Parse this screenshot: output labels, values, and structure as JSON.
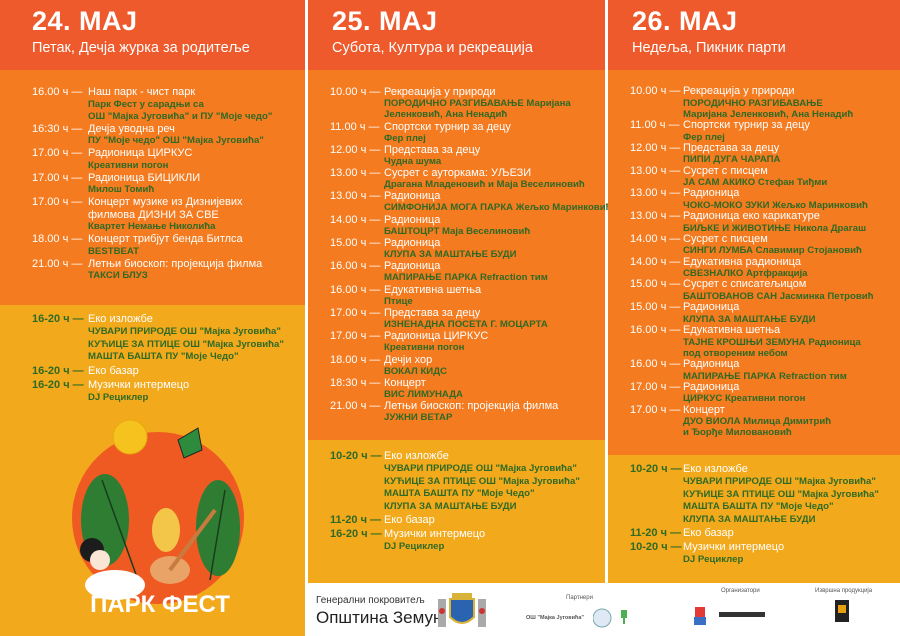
{
  "colors": {
    "header": "#ee5a2b",
    "schedule": "#f47b20",
    "eco": "#f2a91c",
    "detail_text": "#2f6a25"
  },
  "days": [
    {
      "date": "24. МАЈ",
      "subtitle": "Петак, Дечја журка за родитеље",
      "events": [
        {
          "time": "16.00 ч —",
          "title": "Наш парк - чист парк",
          "details": [
            "Парк Фест у сарадњи са",
            "ОШ \"Мајка Југовића\" и ПУ \"Моје чедо\""
          ]
        },
        {
          "time": "16:30 ч —",
          "title": "Дечја уводна реч",
          "details": [
            "ПУ \"Моје чедо\" ОШ \"Мајка Југовића\""
          ]
        },
        {
          "time": "17.00 ч —",
          "title": "Радионица ЦИРКУС",
          "details": [
            "Креативни погон"
          ]
        },
        {
          "time": "17.00 ч —",
          "title": "Радионица БИЦИКЛИ",
          "details": [
            "Милош Томић"
          ]
        },
        {
          "time": "17.00 ч —",
          "title": "Концерт музике из Дизнијевих",
          "title2": "филмова ДИЗНИ ЗА СВЕ",
          "details": [
            "Квартет Немање Николића"
          ]
        },
        {
          "time": "18.00 ч —",
          "title": "Концерт трибјут бенда Битлса",
          "details": [
            "BESTBEAT"
          ]
        },
        {
          "time": "21.00 ч —",
          "title": "Летњи биоскоп: пројекција филма",
          "details": [
            "ТАКСИ БЛУЗ"
          ]
        }
      ],
      "eco_events": [
        {
          "time": "16-20 ч —",
          "title": "Еко изложбе",
          "details": [
            "ЧУВАРИ ПРИРОДЕ ОШ \"Мајка Југовића\"",
            "КУЋИЦЕ ЗА ПТИЦЕ ОШ \"Мајка Југовића\"",
            "МАШТА БАШТА ПУ \"Моје Чедо\""
          ]
        },
        {
          "time": "16-20 ч —",
          "title": "Еко базар",
          "details": []
        },
        {
          "time": "16-20 ч —",
          "title": "Музички интермецо",
          "details": [
            "DJ Рециклер"
          ]
        }
      ]
    },
    {
      "date": "25. МАЈ",
      "subtitle": "Субота, Култура и рекреација",
      "events": [
        {
          "time": "10.00 ч —",
          "title": "Рекреација у природи",
          "details": [
            "ПОРОДИЧНО РАЗГИБАВАЊЕ Маријана",
            "Јеленковић, Ана Ненадић"
          ]
        },
        {
          "time": "11.00 ч —",
          "title": "Спортски турнир за децу",
          "details": [
            "Фер плеј"
          ]
        },
        {
          "time": "12.00 ч —",
          "title": "Представа за децу",
          "details": [
            "Чудна шума"
          ]
        },
        {
          "time": "13.00 ч —",
          "title": "Сусрет с ауторкама: УЉЕЗИ",
          "details": [
            "Драгана Младеновић и Маја Веселиновић"
          ]
        },
        {
          "time": "13.00 ч —",
          "title": "Радионица",
          "details": [
            "СИМФОНИЈА МОГА ПАРКА Жељко Маринковић"
          ]
        },
        {
          "time": "14.00 ч —",
          "title": "Радионица",
          "details": [
            "БАШТОЦРТ Маја Веселиновић"
          ]
        },
        {
          "time": "15.00 ч —",
          "title": "Радионица",
          "details": [
            "КЛУПА ЗА МАШТАЊЕ БУДИ"
          ]
        },
        {
          "time": "16.00 ч —",
          "title": "Радионица",
          "details": [
            "МАПИРАЊЕ ПАРКА Refraction тим"
          ]
        },
        {
          "time": "16.00 ч —",
          "title": "Едукативна шетња",
          "details": [
            "Птице"
          ]
        },
        {
          "time": "17.00 ч —",
          "title": "Представа за децу",
          "details": [
            "ИЗНЕНАДНА ПОСЕТА Г. МОЦАРТА"
          ]
        },
        {
          "time": "17.00 ч —",
          "title": "Радионица ЦИРКУС",
          "details": [
            "Креативни погон"
          ]
        },
        {
          "time": "18.00 ч —",
          "title": "Дечји хор",
          "details": [
            "ВОКАЛ КИДС"
          ]
        },
        {
          "time": "18:30 ч —",
          "title": "Концерт",
          "details": [
            "ВИС ЛИМУНАДА"
          ]
        },
        {
          "time": "21.00 ч —",
          "title": "Летњи биоскоп: пројекција филма",
          "details": [
            "ЈУЖНИ ВЕТАР"
          ]
        }
      ],
      "eco_events": [
        {
          "time": "10-20 ч —",
          "title": "Еко изложбе",
          "details": [
            "ЧУВАРИ ПРИРОДЕ ОШ \"Мајка Југовића\"",
            "КУЋИЦЕ ЗА ПТИЦЕ ОШ \"Мајка Југовића\"",
            "МАШТА БАШТА ПУ \"Моје Чедо\"",
            "КЛУПА ЗА МАШТАЊЕ БУДИ"
          ]
        },
        {
          "time": "11-20 ч —",
          "title": "Еко базар",
          "details": []
        },
        {
          "time": "16-20 ч —",
          "title": "Музички интермецо",
          "details": [
            "DJ Рециклер"
          ]
        }
      ]
    },
    {
      "date": "26. МАЈ",
      "subtitle": "Недеља, Пикник парти",
      "events": [
        {
          "time": "10.00 ч —",
          "title": "Рекреација у природи",
          "details": [
            "ПОРОДИЧНО РАЗГИБАВАЊЕ",
            "Маријана Јеленковић, Ана Ненадић"
          ]
        },
        {
          "time": "11.00 ч —",
          "title": "Спортски турнир за децу",
          "details": [
            "Фер плеј"
          ]
        },
        {
          "time": "12.00 ч —",
          "title": "Представа за децу",
          "details": [
            "ПИПИ ДУГА ЧАРАПА"
          ]
        },
        {
          "time": "13.00 ч —",
          "title": "Сусрет с писцем",
          "details": [
            "ЈА САМ АКИКО Стефан Тиђми"
          ]
        },
        {
          "time": "13.00 ч —",
          "title": "Радионица",
          "details": [
            "ЧОКО-МОКО ЗУКИ Жељко Маринковић"
          ]
        },
        {
          "time": "13.00 ч —",
          "title": "Радионица еко карикатуре",
          "details": [
            "БИЉКЕ И ЖИВОТИЊЕ Никола Драгаш"
          ]
        },
        {
          "time": "14.00 ч —",
          "title": "Сусрет с писцем",
          "details": [
            "СИНГИ ЛУМБА Славимир Стојановић"
          ]
        },
        {
          "time": "14.00 ч —",
          "title": "Едукативна радионица",
          "details": [
            "СВЕЗНАЛКО Артфракција"
          ]
        },
        {
          "time": "15.00 ч —",
          "title": "Сусрет с списатељицом",
          "details": [
            "БАШТОВАНОВ САН Јасминка Петровић"
          ]
        },
        {
          "time": "15.00 ч —",
          "title": "Радионица",
          "details": [
            "КЛУПА ЗА МАШТАЊЕ БУДИ"
          ]
        },
        {
          "time": "16.00 ч —",
          "title": "Едукативна шетња",
          "details": [
            "ТАЈНЕ КРОШЊИ ЗЕМУНА Радионица",
            "под отвореним небом"
          ]
        },
        {
          "time": "16.00 ч —",
          "title": "Радионица",
          "details": [
            "МАПИРАЊЕ ПАРКА Refraction тим"
          ]
        },
        {
          "time": "17.00 ч —",
          "title": "Радионица",
          "details": [
            "ЦИРКУС Креативни погон"
          ]
        },
        {
          "time": "17.00 ч —",
          "title": "Концерт",
          "details": [
            "ДУО ВИОЛА Милица Димитрић",
            "и Ђорђе Миловановић"
          ]
        }
      ],
      "eco_events": [
        {
          "time": "10-20 ч —",
          "title": "Еко изложбе",
          "details": [
            "ЧУВАРИ ПРИРОДЕ ОШ \"Мајка Југовића\"",
            "КУЋИЦЕ ЗА ПТИЦЕ ОШ \"Мајка Југовића\"",
            "МАШТА БАШТА ПУ \"Моје Чедо\"",
            "КЛУПА ЗА МАШТАЊЕ БУДИ"
          ]
        },
        {
          "time": "11-20 ч —",
          "title": "Еко базар",
          "details": []
        },
        {
          "time": "10-20 ч —",
          "title": "Музички интермецо",
          "details": [
            "DJ Рециклер"
          ]
        }
      ]
    }
  ],
  "festival_logo": "ПАРК ФЕСТ",
  "footer": {
    "sponsor_label": "Генерални покровитељ",
    "sponsor_name": "Општина Земун",
    "partners_label": "Партнери",
    "partner_school": "ОШ \"Мајка Југовића\"",
    "organizers_label": "Организатори",
    "production_label": "Извршна продукција"
  }
}
